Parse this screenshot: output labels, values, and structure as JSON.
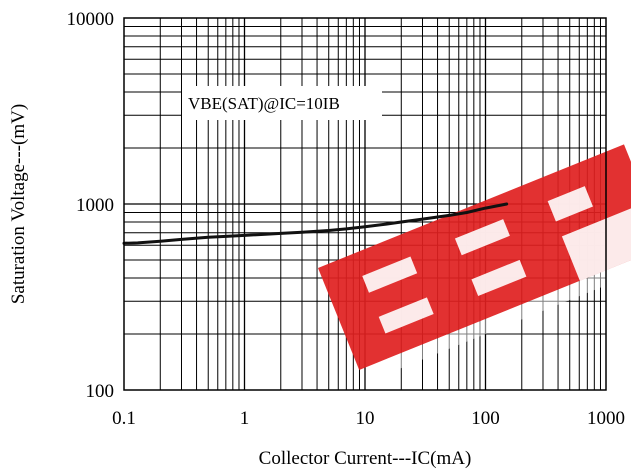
{
  "chart_data": {
    "type": "line",
    "xlabel": "Collector Current---IC(mA)",
    "ylabel": "Saturation Voltage---(mV)",
    "x_scale": "log",
    "y_scale": "log",
    "xlim": [
      0.1,
      1000
    ],
    "ylim": [
      100,
      10000
    ],
    "x_ticks": [
      0.1,
      1,
      10,
      100,
      1000
    ],
    "x_tick_labels": [
      "0.1",
      "1",
      "10",
      "100",
      "1000"
    ],
    "y_ticks": [
      100,
      1000,
      10000
    ],
    "y_tick_labels": [
      "100",
      "1000",
      "10000"
    ],
    "grid": true,
    "annotation": "VBE(SAT)@IC=10IB",
    "series": [
      {
        "color": "#111111",
        "x": [
          0.1,
          0.13,
          0.2,
          0.3,
          0.5,
          0.7,
          1,
          1.5,
          2,
          3,
          5,
          7,
          10,
          15,
          20,
          30,
          50,
          70,
          100,
          150
        ],
        "y": [
          615,
          618,
          630,
          645,
          662,
          670,
          678,
          688,
          695,
          705,
          720,
          735,
          755,
          780,
          800,
          830,
          868,
          900,
          950,
          1000
        ]
      }
    ],
    "watermark_color": "#e02020"
  }
}
